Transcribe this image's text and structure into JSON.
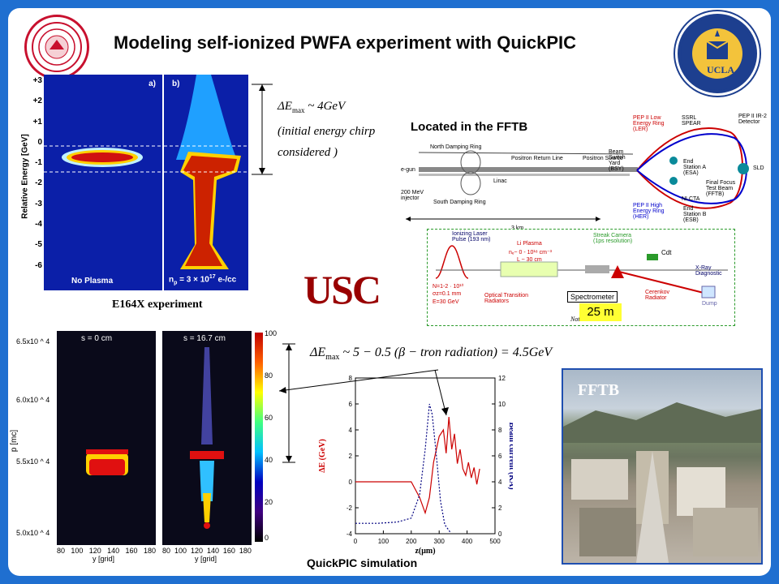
{
  "title": "Modeling self-ionized PWFA experiment with QuickPIC",
  "logos": {
    "left_seal": "seal-icon",
    "right_seal_text": "THE UNIVERSITY OF CALIFORNIA",
    "right_seal_year": "1868",
    "right_seal_school": "UCLA",
    "usc": "USC"
  },
  "experiment": {
    "y_axis_label": "Relative Energy [GeV]",
    "y_ticks": [
      "+3",
      "+2",
      "+1",
      "0",
      "-1",
      "-2",
      "-3",
      "-4",
      "-5",
      "-6"
    ],
    "panel_a": "a)",
    "panel_b": "b)",
    "no_plasma": "No Plasma",
    "plasma_label": "n",
    "plasma_sub": "p",
    "plasma_value": " = 3 × 10",
    "plasma_exp": "17",
    "plasma_unit": " e-/cc",
    "caption": "E164X experiment"
  },
  "energy_note": {
    "line1": "ΔE",
    "line1_sub": "max",
    "line1_rest": " ~ 4GeV",
    "line2": "(initial energy chirp",
    "line3": "considered )"
  },
  "fftb_map": {
    "heading": "Located in the FFTB",
    "labels": {
      "ndr": "North Damping Ring",
      "prl": "Positron Return Line",
      "ps": "Positron Source",
      "egun": "e-gun",
      "injector": "200 MeV injector",
      "linac": "Linac",
      "sdr": "South Damping Ring",
      "km": "3 km",
      "bsy": "Beam Switch Yard (BSY)",
      "pep_ler": "PEP II Low Energy Ring (LER)",
      "spear": "SSRL SPEAR",
      "esa": "End Station A (ESA)",
      "fftb": "Final Focus Test Beam (FFTB)",
      "nlcta": "NLCTA",
      "esb": "End Station B (ESB)",
      "pep_her": "PEP II High Energy Ring (HER)",
      "ir2": "PEP II IR-2 Detector",
      "sld": "SLD"
    }
  },
  "setup": {
    "ionizing": "Ionizing Laser Pulse (193 nm)",
    "li_plasma": "Li Plasma",
    "ne": "nₑ~ 0 - 10¹⁸ cm⁻³",
    "length": "L ~ 30 cm",
    "beam": "N=1-2 · 10¹⁰",
    "sigz": "σz=0.1 mm",
    "energy": "E=30 GeV",
    "otr": "Optical Transition Radiators",
    "spectrometer": "Spectrometer",
    "streak": "Streak Camera (1ps resolution)",
    "cdt": "Cdt",
    "xray": "X-Ray Diagnostic",
    "cerenkov": "Cerenkov Radiator",
    "dump": "Dump",
    "distance": "25 m",
    "note": "Not to scale"
  },
  "simulation": {
    "panel1_title": "s = 0 cm",
    "panel2_title": "s = 16.7 cm",
    "y_label": "p  [mc]",
    "y_ticks": [
      "6.5x10 ^ 4",
      "6.0x10 ^ 4",
      "5.5x10 ^ 4",
      "5.0x10 ^ 4"
    ],
    "x_ticks": [
      "80",
      "100",
      "120",
      "140",
      "160",
      "180"
    ],
    "x_label": "y [grid]",
    "colorbar_ticks": [
      "100",
      "80",
      "60",
      "40",
      "20",
      "0"
    ],
    "formula": "ΔE",
    "formula_sub": "max",
    "formula_rest": " ~ 5 − 0.5 (β − tron radiation) = 4.5GeV",
    "caption": "QuickPIC simulation"
  },
  "chart_data": {
    "type": "line",
    "xlabel": "z(μm)",
    "ylabel": "ΔE (GeV)",
    "y2label": "Beam current (KA)",
    "xlim": [
      0,
      500
    ],
    "ylim": [
      -4,
      8
    ],
    "y2lim": [
      0,
      12
    ],
    "x_ticks": [
      "0",
      "100",
      "200",
      "300",
      "400",
      "500"
    ],
    "y_ticks": [
      "8",
      "6",
      "4",
      "2",
      "0",
      "-2",
      "-4"
    ],
    "y2_ticks": [
      "12",
      "10",
      "8",
      "6",
      "4",
      "2",
      "0"
    ],
    "series": [
      {
        "axis": "left",
        "color": "#cc0000",
        "x": [
          0,
          200,
          230,
          250,
          265,
          280,
          300,
          315,
          325,
          335,
          345,
          355,
          365,
          375,
          385,
          395,
          405,
          415,
          425,
          435,
          445
        ],
        "values": [
          0,
          0,
          -1.2,
          -2.4,
          -1.2,
          1.5,
          3.5,
          4.0,
          2.2,
          5.0,
          2.5,
          3.7,
          1.4,
          2.5,
          1.0,
          0.5,
          1.5,
          0.3,
          1.1,
          -0.2,
          1.0
        ]
      },
      {
        "axis": "right",
        "color": "#000080",
        "x": [
          0,
          80,
          150,
          200,
          230,
          250,
          265,
          275,
          290,
          305,
          320,
          340
        ],
        "values": [
          0.8,
          0.8,
          0.9,
          1.2,
          3.0,
          6.5,
          10.0,
          9.2,
          6.0,
          2.5,
          0.7,
          0.1
        ]
      }
    ]
  },
  "photo": {
    "label": "FFTB"
  },
  "colors": {
    "frame": "#1f6fd0",
    "accent_red": "#990000",
    "plot_red": "#cc0000",
    "plot_blue": "#000080",
    "usc": "#990000",
    "yellow": "#ffff33"
  }
}
